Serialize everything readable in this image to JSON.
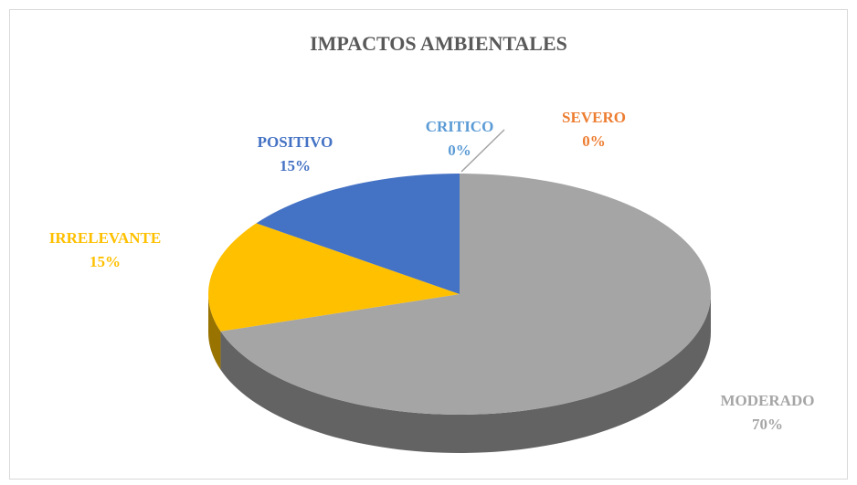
{
  "chart_data": {
    "type": "pie",
    "title": "IMPACTOS AMBIENTALES",
    "categories": [
      "CRITICO",
      "SEVERO",
      "MODERADO",
      "IRRELEVANTE",
      "POSITIVO"
    ],
    "values": [
      0,
      0,
      70,
      15,
      15
    ],
    "value_labels": [
      "0%",
      "0%",
      "70%",
      "15%",
      "15%"
    ],
    "colors": [
      "#5b9bd5",
      "#ed7d31",
      "#a5a5a5",
      "#ffc000",
      "#4472c4"
    ]
  }
}
